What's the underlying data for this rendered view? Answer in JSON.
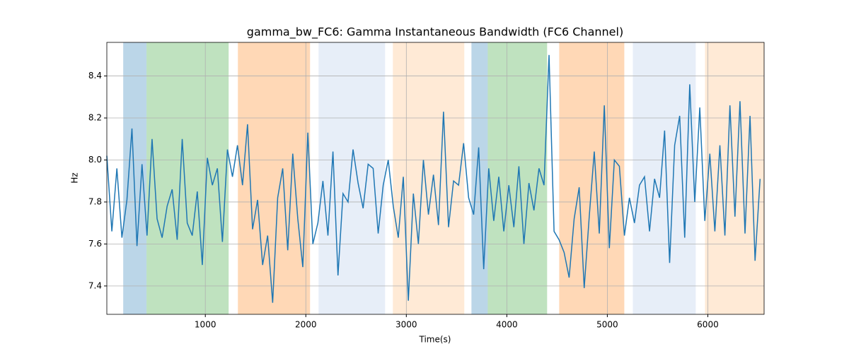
{
  "chart_data": {
    "type": "line",
    "title": "gamma_bw_FC6: Gamma Instantaneous Bandwidth (FC6 Channel)",
    "x_label": "Time(s)",
    "y_label": "Hz",
    "xlim": [
      20,
      6560
    ],
    "ylim": [
      7.265,
      8.56
    ],
    "xticks": [
      1000,
      2000,
      3000,
      4000,
      5000,
      6000
    ],
    "yticks": [
      7.4,
      7.6,
      7.8,
      {
        "value": 8,
        "label": "8.0"
      },
      8.2,
      8.4
    ],
    "grid": true,
    "spans": [
      {
        "start": 183,
        "end": 415,
        "color": "#1f77b4"
      },
      {
        "start": 415,
        "end": 1232,
        "color": "#2ca02c"
      },
      {
        "start": 1324,
        "end": 2042,
        "color": "#ff7f0e"
      },
      {
        "start": 2127,
        "end": 2789,
        "color": "#aec7e8"
      },
      {
        "start": 2866,
        "end": 3577,
        "color": "#ffbb78"
      },
      {
        "start": 3648,
        "end": 3810,
        "color": "#1f77b4"
      },
      {
        "start": 3810,
        "end": 4401,
        "color": "#2ca02c"
      },
      {
        "start": 4521,
        "end": 5169,
        "color": "#ff7f0e"
      },
      {
        "start": 5254,
        "end": 5880,
        "color": "#aec7e8"
      },
      {
        "start": 5972,
        "end": 6560,
        "color": "#ffbb78"
      }
    ],
    "x": [
      20,
      70,
      120,
      170,
      220,
      270,
      320,
      370,
      420,
      470,
      520,
      570,
      620,
      670,
      720,
      770,
      820,
      870,
      920,
      970,
      1020,
      1070,
      1120,
      1170,
      1220,
      1270,
      1320,
      1370,
      1420,
      1470,
      1520,
      1570,
      1620,
      1670,
      1720,
      1770,
      1820,
      1870,
      1920,
      1970,
      2020,
      2070,
      2120,
      2170,
      2220,
      2270,
      2320,
      2370,
      2420,
      2470,
      2520,
      2570,
      2620,
      2670,
      2720,
      2770,
      2820,
      2870,
      2920,
      2970,
      3020,
      3070,
      3120,
      3170,
      3220,
      3270,
      3320,
      3370,
      3420,
      3470,
      3520,
      3570,
      3620,
      3670,
      3720,
      3770,
      3820,
      3870,
      3920,
      3970,
      4020,
      4070,
      4120,
      4170,
      4220,
      4270,
      4320,
      4370,
      4420,
      4470,
      4520,
      4570,
      4620,
      4670,
      4720,
      4770,
      4820,
      4870,
      4920,
      4970,
      5020,
      5070,
      5120,
      5170,
      5220,
      5270,
      5320,
      5370,
      5420,
      5470,
      5520,
      5570,
      5620,
      5670,
      5720,
      5770,
      5820,
      5870,
      5920,
      5970,
      6020,
      6070,
      6120,
      6170,
      6220,
      6270,
      6320,
      6370,
      6420,
      6470,
      6520
    ],
    "series": [
      {
        "color": "#1f77b4",
        "values": [
          8.02,
          7.66,
          7.96,
          7.63,
          7.81,
          8.15,
          7.59,
          7.98,
          7.64,
          8.1,
          7.72,
          7.63,
          7.78,
          7.86,
          7.62,
          8.1,
          7.7,
          7.64,
          7.85,
          7.5,
          8.01,
          7.88,
          7.96,
          7.61,
          8.05,
          7.92,
          8.07,
          7.88,
          8.17,
          7.67,
          7.81,
          7.5,
          7.64,
          7.32,
          7.82,
          7.96,
          7.57,
          8.03,
          7.72,
          7.49,
          8.13,
          7.6,
          7.7,
          7.9,
          7.64,
          8.04,
          7.45,
          7.84,
          7.8,
          8.05,
          7.89,
          7.77,
          7.98,
          7.96,
          7.65,
          7.88,
          8.0,
          7.78,
          7.63,
          7.92,
          7.33,
          7.84,
          7.6,
          8.0,
          7.74,
          7.93,
          7.69,
          8.23,
          7.68,
          7.9,
          7.88,
          8.08,
          7.82,
          7.74,
          8.06,
          7.48,
          7.96,
          7.71,
          7.92,
          7.66,
          7.88,
          7.68,
          7.97,
          7.6,
          7.89,
          7.76,
          7.96,
          7.88,
          8.5,
          7.66,
          7.62,
          7.56,
          7.44,
          7.72,
          7.87,
          7.39,
          7.73,
          8.04,
          7.65,
          8.26,
          7.58,
          8.0,
          7.97,
          7.64,
          7.82,
          7.7,
          7.88,
          7.92,
          7.66,
          7.91,
          7.82,
          8.14,
          7.51,
          8.07,
          8.21,
          7.63,
          8.36,
          7.8,
          8.25,
          7.71,
          8.03,
          7.66,
          8.07,
          7.64,
          8.26,
          7.73,
          8.28,
          7.65,
          8.21,
          7.52,
          7.91
        ]
      }
    ]
  }
}
